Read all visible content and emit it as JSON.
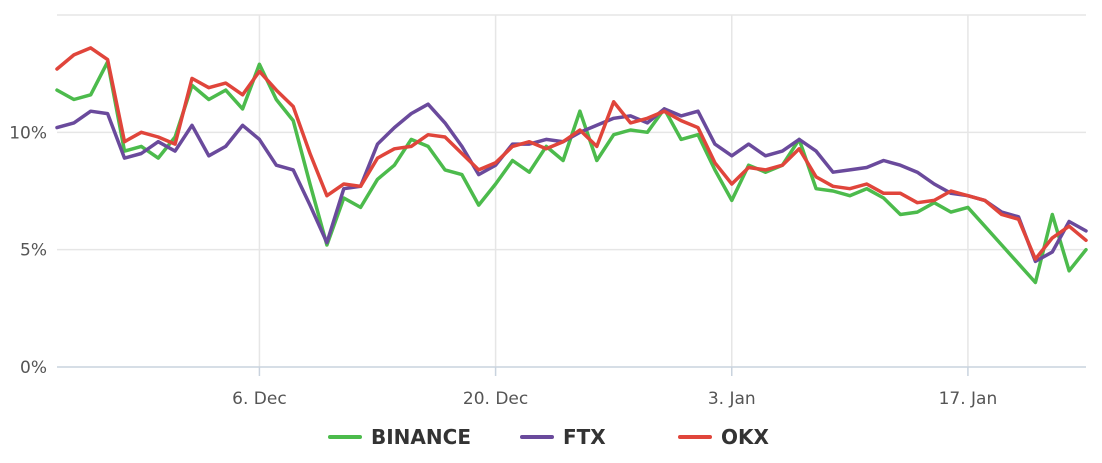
{
  "chart_data": {
    "type": "line",
    "title": "",
    "xlabel": "",
    "ylabel": "",
    "x_range": [
      "2021-11-24",
      "2022-01-24"
    ],
    "ylim": [
      0,
      15
    ],
    "y_ticks": [
      {
        "value": 0,
        "label": "0%"
      },
      {
        "value": 5,
        "label": "5%"
      },
      {
        "value": 10,
        "label": "10%"
      }
    ],
    "x_ticks": [
      {
        "date": "2021-12-06",
        "label": "6. Dec"
      },
      {
        "date": "2021-12-20",
        "label": "20. Dec"
      },
      {
        "date": "2022-01-03",
        "label": "3. Jan"
      },
      {
        "date": "2022-01-17",
        "label": "17. Jan"
      }
    ],
    "grid": true,
    "legend": {
      "position": "bottom"
    },
    "series": [
      {
        "name": "BINANCE",
        "color": "#4cbb4c",
        "points": [
          [
            "2021-11-24",
            11.8
          ],
          [
            "2021-11-25",
            11.4
          ],
          [
            "2021-11-26",
            11.6
          ],
          [
            "2021-11-27",
            13.0
          ],
          [
            "2021-11-28",
            9.2
          ],
          [
            "2021-11-29",
            9.4
          ],
          [
            "2021-11-30",
            8.9
          ],
          [
            "2021-12-01",
            9.8
          ],
          [
            "2021-12-02",
            12.0
          ],
          [
            "2021-12-03",
            11.4
          ],
          [
            "2021-12-04",
            11.8
          ],
          [
            "2021-12-05",
            11.0
          ],
          [
            "2021-12-06",
            12.9
          ],
          [
            "2021-12-07",
            11.4
          ],
          [
            "2021-12-08",
            10.5
          ],
          [
            "2021-12-09",
            7.8
          ],
          [
            "2021-12-10",
            5.2
          ],
          [
            "2021-12-11",
            7.2
          ],
          [
            "2021-12-12",
            6.8
          ],
          [
            "2021-12-13",
            8.0
          ],
          [
            "2021-12-14",
            8.6
          ],
          [
            "2021-12-15",
            9.7
          ],
          [
            "2021-12-16",
            9.4
          ],
          [
            "2021-12-17",
            8.4
          ],
          [
            "2021-12-18",
            8.2
          ],
          [
            "2021-12-19",
            6.9
          ],
          [
            "2021-12-20",
            7.8
          ],
          [
            "2021-12-21",
            8.8
          ],
          [
            "2021-12-22",
            8.3
          ],
          [
            "2021-12-23",
            9.4
          ],
          [
            "2021-12-24",
            8.8
          ],
          [
            "2021-12-25",
            10.9
          ],
          [
            "2021-12-26",
            8.8
          ],
          [
            "2021-12-27",
            9.9
          ],
          [
            "2021-12-28",
            10.1
          ],
          [
            "2021-12-29",
            10.0
          ],
          [
            "2021-12-30",
            11.0
          ],
          [
            "2021-12-31",
            9.7
          ],
          [
            "2022-01-01",
            9.9
          ],
          [
            "2022-01-02",
            8.4
          ],
          [
            "2022-01-03",
            7.1
          ],
          [
            "2022-01-04",
            8.6
          ],
          [
            "2022-01-05",
            8.3
          ],
          [
            "2022-01-06",
            8.6
          ],
          [
            "2022-01-07",
            9.7
          ],
          [
            "2022-01-08",
            7.6
          ],
          [
            "2022-01-09",
            7.5
          ],
          [
            "2022-01-10",
            7.3
          ],
          [
            "2022-01-11",
            7.6
          ],
          [
            "2022-01-12",
            7.2
          ],
          [
            "2022-01-13",
            6.5
          ],
          [
            "2022-01-14",
            6.6
          ],
          [
            "2022-01-15",
            7.0
          ],
          [
            "2022-01-16",
            6.6
          ],
          [
            "2022-01-17",
            6.8
          ],
          [
            "2022-01-18",
            6.0
          ],
          [
            "2022-01-19",
            5.2
          ],
          [
            "2022-01-20",
            4.4
          ],
          [
            "2022-01-21",
            3.6
          ],
          [
            "2022-01-22",
            6.5
          ],
          [
            "2022-01-23",
            4.1
          ],
          [
            "2022-01-24",
            5.0
          ]
        ]
      },
      {
        "name": "FTX",
        "color": "#6a4a9c",
        "points": [
          [
            "2021-11-24",
            10.2
          ],
          [
            "2021-11-25",
            10.4
          ],
          [
            "2021-11-26",
            10.9
          ],
          [
            "2021-11-27",
            10.8
          ],
          [
            "2021-11-28",
            8.9
          ],
          [
            "2021-11-29",
            9.1
          ],
          [
            "2021-11-30",
            9.6
          ],
          [
            "2021-12-01",
            9.2
          ],
          [
            "2021-12-02",
            10.3
          ],
          [
            "2021-12-03",
            9.0
          ],
          [
            "2021-12-04",
            9.4
          ],
          [
            "2021-12-05",
            10.3
          ],
          [
            "2021-12-06",
            9.7
          ],
          [
            "2021-12-07",
            8.6
          ],
          [
            "2021-12-08",
            8.4
          ],
          [
            "2021-12-09",
            6.9
          ],
          [
            "2021-12-10",
            5.3
          ],
          [
            "2021-12-11",
            7.6
          ],
          [
            "2021-12-12",
            7.7
          ],
          [
            "2021-12-13",
            9.5
          ],
          [
            "2021-12-14",
            10.2
          ],
          [
            "2021-12-15",
            10.8
          ],
          [
            "2021-12-16",
            11.2
          ],
          [
            "2021-12-17",
            10.4
          ],
          [
            "2021-12-18",
            9.4
          ],
          [
            "2021-12-19",
            8.2
          ],
          [
            "2021-12-20",
            8.6
          ],
          [
            "2021-12-21",
            9.5
          ],
          [
            "2021-12-22",
            9.5
          ],
          [
            "2021-12-23",
            9.7
          ],
          [
            "2021-12-24",
            9.6
          ],
          [
            "2021-12-25",
            10.0
          ],
          [
            "2021-12-26",
            10.3
          ],
          [
            "2021-12-27",
            10.6
          ],
          [
            "2021-12-28",
            10.7
          ],
          [
            "2021-12-29",
            10.4
          ],
          [
            "2021-12-30",
            11.0
          ],
          [
            "2021-12-31",
            10.7
          ],
          [
            "2022-01-01",
            10.9
          ],
          [
            "2022-01-02",
            9.5
          ],
          [
            "2022-01-03",
            9.0
          ],
          [
            "2022-01-04",
            9.5
          ],
          [
            "2022-01-05",
            9.0
          ],
          [
            "2022-01-06",
            9.2
          ],
          [
            "2022-01-07",
            9.7
          ],
          [
            "2022-01-08",
            9.2
          ],
          [
            "2022-01-09",
            8.3
          ],
          [
            "2022-01-10",
            8.4
          ],
          [
            "2022-01-11",
            8.5
          ],
          [
            "2022-01-12",
            8.8
          ],
          [
            "2022-01-13",
            8.6
          ],
          [
            "2022-01-14",
            8.3
          ],
          [
            "2022-01-15",
            7.8
          ],
          [
            "2022-01-16",
            7.4
          ],
          [
            "2022-01-17",
            7.3
          ],
          [
            "2022-01-18",
            7.1
          ],
          [
            "2022-01-19",
            6.6
          ],
          [
            "2022-01-20",
            6.4
          ],
          [
            "2022-01-21",
            4.5
          ],
          [
            "2022-01-22",
            4.9
          ],
          [
            "2022-01-23",
            6.2
          ],
          [
            "2022-01-24",
            5.8
          ]
        ]
      },
      {
        "name": "OKX",
        "color": "#e0453b",
        "points": [
          [
            "2021-11-24",
            12.7
          ],
          [
            "2021-11-25",
            13.3
          ],
          [
            "2021-11-26",
            13.6
          ],
          [
            "2021-11-27",
            13.1
          ],
          [
            "2021-11-28",
            9.6
          ],
          [
            "2021-11-29",
            10.0
          ],
          [
            "2021-11-30",
            9.8
          ],
          [
            "2021-12-01",
            9.5
          ],
          [
            "2021-12-02",
            12.3
          ],
          [
            "2021-12-03",
            11.9
          ],
          [
            "2021-12-04",
            12.1
          ],
          [
            "2021-12-05",
            11.6
          ],
          [
            "2021-12-06",
            12.6
          ],
          [
            "2021-12-07",
            11.8
          ],
          [
            "2021-12-08",
            11.1
          ],
          [
            "2021-12-09",
            9.1
          ],
          [
            "2021-12-10",
            7.3
          ],
          [
            "2021-12-11",
            7.8
          ],
          [
            "2021-12-12",
            7.7
          ],
          [
            "2021-12-13",
            8.9
          ],
          [
            "2021-12-14",
            9.3
          ],
          [
            "2021-12-15",
            9.4
          ],
          [
            "2021-12-16",
            9.9
          ],
          [
            "2021-12-17",
            9.8
          ],
          [
            "2021-12-18",
            9.1
          ],
          [
            "2021-12-19",
            8.4
          ],
          [
            "2021-12-20",
            8.7
          ],
          [
            "2021-12-21",
            9.4
          ],
          [
            "2021-12-22",
            9.6
          ],
          [
            "2021-12-23",
            9.3
          ],
          [
            "2021-12-24",
            9.6
          ],
          [
            "2021-12-25",
            10.1
          ],
          [
            "2021-12-26",
            9.4
          ],
          [
            "2021-12-27",
            11.3
          ],
          [
            "2021-12-28",
            10.4
          ],
          [
            "2021-12-29",
            10.6
          ],
          [
            "2021-12-30",
            10.9
          ],
          [
            "2021-12-31",
            10.5
          ],
          [
            "2022-01-01",
            10.2
          ],
          [
            "2022-01-02",
            8.7
          ],
          [
            "2022-01-03",
            7.8
          ],
          [
            "2022-01-04",
            8.5
          ],
          [
            "2022-01-05",
            8.4
          ],
          [
            "2022-01-06",
            8.6
          ],
          [
            "2022-01-07",
            9.3
          ],
          [
            "2022-01-08",
            8.1
          ],
          [
            "2022-01-09",
            7.7
          ],
          [
            "2022-01-10",
            7.6
          ],
          [
            "2022-01-11",
            7.8
          ],
          [
            "2022-01-12",
            7.4
          ],
          [
            "2022-01-13",
            7.4
          ],
          [
            "2022-01-14",
            7.0
          ],
          [
            "2022-01-15",
            7.1
          ],
          [
            "2022-01-16",
            7.5
          ],
          [
            "2022-01-17",
            7.3
          ],
          [
            "2022-01-18",
            7.1
          ],
          [
            "2022-01-19",
            6.5
          ],
          [
            "2022-01-20",
            6.3
          ],
          [
            "2022-01-21",
            4.6
          ],
          [
            "2022-01-22",
            5.5
          ],
          [
            "2022-01-23",
            6.0
          ],
          [
            "2022-01-24",
            5.4
          ]
        ]
      }
    ]
  }
}
